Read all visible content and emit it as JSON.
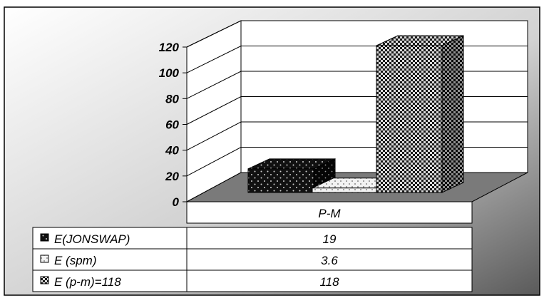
{
  "chart_data": {
    "type": "bar",
    "categories": [
      "P-M"
    ],
    "series": [
      {
        "name": "E(JONSWAP)",
        "values": [
          19
        ],
        "table_value": "19",
        "pattern": "dark-dots"
      },
      {
        "name": "E (spm)",
        "values": [
          3.6
        ],
        "table_value": "3.6",
        "pattern": "light-dots"
      },
      {
        "name": "E (p-m)=118",
        "values": [
          118
        ],
        "table_value": "118",
        "pattern": "checker"
      }
    ],
    "yticks": [
      "0",
      "20",
      "40",
      "60",
      "80",
      "100",
      "120"
    ],
    "ylim": [
      0,
      120
    ],
    "grid": true,
    "legend": "data-table",
    "colors": {
      "dark": "#1a1a1a",
      "light": "#e6e6e6",
      "floor": "#7a7a7a",
      "dot": "#cfcfcf"
    }
  }
}
